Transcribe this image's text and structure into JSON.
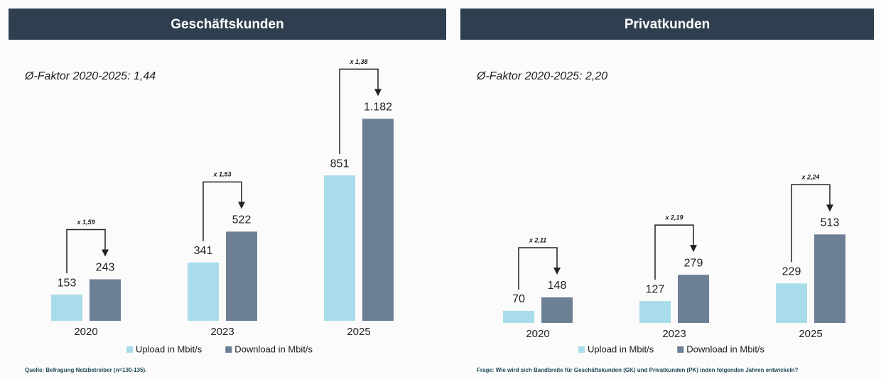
{
  "chart_data": [
    {
      "type": "bar",
      "title": "Geschäftskunden",
      "subtitle": "Ø-Faktor 2020-2025: 1,44",
      "categories": [
        "2020",
        "2023",
        "2025"
      ],
      "series": [
        {
          "name": "Upload in Mbit/s",
          "color": "#a9dcea",
          "values": [
            153,
            341,
            851
          ]
        },
        {
          "name": "Download in Mbit/s",
          "color": "#6d7f95",
          "values": [
            243,
            522,
            1182
          ],
          "value_labels": [
            "243",
            "522",
            "1.182"
          ]
        }
      ],
      "annotations": [
        "x 1,59",
        "x 1,53",
        "x 1,38"
      ],
      "ylim": [
        0,
        1300
      ],
      "source": "Quelle: Befragung Netzbetreiber (n=130-135)."
    },
    {
      "type": "bar",
      "title": "Privatkunden",
      "subtitle": "Ø-Faktor 2020-2025: 2,20",
      "categories": [
        "2020",
        "2023",
        "2025"
      ],
      "series": [
        {
          "name": "Upload in Mbit/s",
          "color": "#a9dcea",
          "values": [
            70,
            127,
            229
          ]
        },
        {
          "name": "Download in Mbit/s",
          "color": "#6d7f95",
          "values": [
            148,
            279,
            513
          ]
        }
      ],
      "annotations": [
        "x 2,11",
        "x 2,19",
        "x 2,24"
      ],
      "ylim": [
        0,
        1300
      ],
      "source": "Frage: Wie wird sich Bandbreite für Geschäftskunden (GK) und Privatkunden (PK) inden folgenden Jahren entwickeln?"
    }
  ]
}
